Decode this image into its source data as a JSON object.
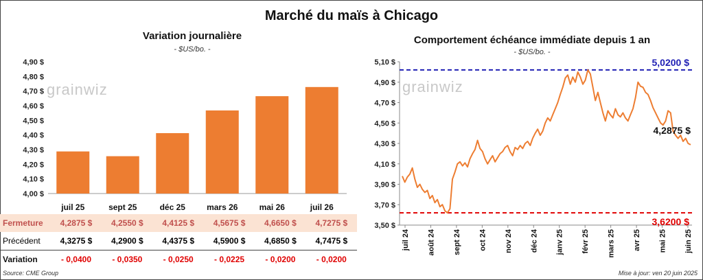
{
  "title": "Marché du maïs à Chicago",
  "left": {
    "subtitle": "Variation journalière",
    "unit": "- $US/bo. -",
    "watermark": "grainwiz"
  },
  "right": {
    "subtitle": "Comportement échéance immédiate depuis 1 an",
    "unit": "- $US/bo. -",
    "watermark": "grainwiz",
    "high_label": "5,0200 $",
    "low_label": "3,6200 $",
    "last_label": "4,2875 $"
  },
  "table": {
    "row_labels": [
      "Fermeture",
      "Précédent",
      "Variation"
    ],
    "fermeture": [
      "4,2875  $",
      "4,2550  $",
      "4,4125  $",
      "4,5675  $",
      "4,6650  $",
      "4,7275  $"
    ],
    "precedent": [
      "4,3275  $",
      "4,2900  $",
      "4,4375  $",
      "4,5900  $",
      "4,6850  $",
      "4,7475  $"
    ],
    "variation": [
      "- 0,0400",
      "- 0,0350",
      "- 0,0250",
      "- 0,0225",
      "- 0,0200",
      "- 0,0200"
    ]
  },
  "footer": {
    "source": "Source: CME Group",
    "updated": "Mise à jour: ven 20 juin 2025"
  },
  "chart_data": [
    {
      "type": "bar",
      "title": "Variation journalière",
      "ylabel": "$US/bo.",
      "categories": [
        "juil 25",
        "sept 25",
        "déc 25",
        "mars 26",
        "mai 26",
        "juil 26"
      ],
      "values": [
        4.2875,
        4.255,
        4.4125,
        4.5675,
        4.665,
        4.7275
      ],
      "ylim": [
        4.0,
        4.9
      ],
      "yticks": [
        "4,00 $",
        "4,10 $",
        "4,20 $",
        "4,30 $",
        "4,40 $",
        "4,50 $",
        "4,60 $",
        "4,70 $",
        "4,80 $",
        "4,90 $"
      ],
      "bar_color": "#ed7d31",
      "grid": false
    },
    {
      "type": "line",
      "title": "Comportement échéance immédiate depuis 1 an",
      "ylabel": "$US/bo.",
      "ylim": [
        3.5,
        5.1
      ],
      "yticks": [
        "3,50 $",
        "3,70 $",
        "3,90 $",
        "4,10 $",
        "4,30 $",
        "4,50 $",
        "4,70 $",
        "4,90 $",
        "5,10 $"
      ],
      "xticks": [
        "juil 24",
        "août 24",
        "sept 24",
        "oct 24",
        "nov 24",
        "déc 24",
        "janv 25",
        "févr 25",
        "mars 25",
        "avr 25",
        "mai 25",
        "juin 25"
      ],
      "high": 5.02,
      "low": 3.62,
      "last": 4.2875,
      "line_color": "#ed7d31",
      "high_color": "#1f1fb4",
      "low_color": "#e00000",
      "values": [
        3.98,
        3.92,
        3.97,
        4.0,
        4.06,
        3.95,
        3.87,
        3.9,
        3.85,
        3.82,
        3.84,
        3.76,
        3.79,
        3.72,
        3.75,
        3.68,
        3.7,
        3.64,
        3.62,
        3.66,
        3.95,
        4.02,
        4.1,
        4.12,
        4.08,
        4.11,
        4.07,
        4.15,
        4.2,
        4.24,
        4.33,
        4.25,
        4.22,
        4.15,
        4.1,
        4.14,
        4.18,
        4.12,
        4.16,
        4.2,
        4.22,
        4.26,
        4.28,
        4.22,
        4.18,
        4.26,
        4.24,
        4.28,
        4.25,
        4.3,
        4.32,
        4.28,
        4.35,
        4.4,
        4.44,
        4.38,
        4.42,
        4.5,
        4.55,
        4.52,
        4.58,
        4.64,
        4.7,
        4.78,
        4.85,
        4.94,
        4.97,
        4.88,
        4.95,
        4.9,
        5.0,
        4.95,
        4.88,
        4.92,
        5.02,
        4.98,
        4.85,
        4.72,
        4.8,
        4.7,
        4.6,
        4.52,
        4.62,
        4.58,
        4.55,
        4.64,
        4.58,
        4.56,
        4.6,
        4.55,
        4.52,
        4.58,
        4.64,
        4.75,
        4.9,
        4.86,
        4.85,
        4.8,
        4.78,
        4.72,
        4.65,
        4.6,
        4.55,
        4.5,
        4.48,
        4.52,
        4.62,
        4.6,
        4.42,
        4.38,
        4.35,
        4.38,
        4.32,
        4.35,
        4.3,
        4.2875
      ]
    }
  ]
}
